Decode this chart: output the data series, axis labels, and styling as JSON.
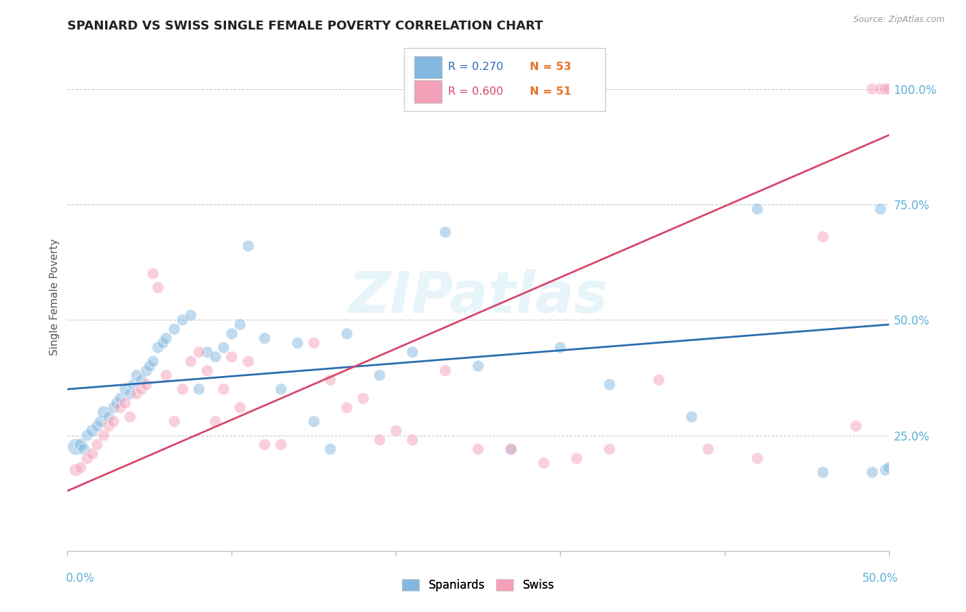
{
  "title": "SPANIARD VS SWISS SINGLE FEMALE POVERTY CORRELATION CHART",
  "source": "Source: ZipAtlas.com",
  "ylabel": "Single Female Poverty",
  "ylim": [
    0.0,
    1.1
  ],
  "xlim": [
    0.0,
    0.5
  ],
  "ytick_vals": [
    0.25,
    0.5,
    0.75,
    1.0
  ],
  "ytick_labels": [
    "25.0%",
    "50.0%",
    "75.0%",
    "100.0%"
  ],
  "watermark": "ZIPatlas",
  "blue_color": "#82b8e0",
  "pink_color": "#f4a0b8",
  "blue_line_color": "#2b6cb0",
  "pink_line_color": "#d6456a",
  "tick_color": "#5bb0d8",
  "legend_r_blue": "R = 0.270",
  "legend_n_blue": "N = 53",
  "legend_r_pink": "R = 0.600",
  "legend_n_pink": "N = 51",
  "spaniards_x": [
    0.005,
    0.008,
    0.01,
    0.012,
    0.015,
    0.018,
    0.02,
    0.022,
    0.025,
    0.028,
    0.03,
    0.032,
    0.035,
    0.038,
    0.04,
    0.042,
    0.045,
    0.048,
    0.05,
    0.052,
    0.055,
    0.058,
    0.06,
    0.065,
    0.07,
    0.075,
    0.08,
    0.085,
    0.09,
    0.095,
    0.1,
    0.105,
    0.11,
    0.12,
    0.13,
    0.14,
    0.15,
    0.16,
    0.17,
    0.19,
    0.21,
    0.23,
    0.25,
    0.27,
    0.3,
    0.33,
    0.38,
    0.42,
    0.46,
    0.49,
    0.495,
    0.498,
    0.5
  ],
  "spaniards_y": [
    0.225,
    0.23,
    0.22,
    0.25,
    0.26,
    0.27,
    0.28,
    0.3,
    0.29,
    0.31,
    0.32,
    0.33,
    0.35,
    0.34,
    0.36,
    0.38,
    0.37,
    0.39,
    0.4,
    0.41,
    0.44,
    0.45,
    0.46,
    0.48,
    0.5,
    0.51,
    0.35,
    0.43,
    0.42,
    0.44,
    0.47,
    0.49,
    0.66,
    0.46,
    0.35,
    0.45,
    0.28,
    0.22,
    0.47,
    0.38,
    0.43,
    0.69,
    0.4,
    0.22,
    0.44,
    0.36,
    0.29,
    0.74,
    0.17,
    0.17,
    0.74,
    0.175,
    0.18
  ],
  "spaniards_size": [
    300,
    180,
    150,
    150,
    180,
    150,
    150,
    180,
    150,
    150,
    150,
    150,
    150,
    150,
    150,
    150,
    150,
    150,
    150,
    150,
    150,
    150,
    150,
    150,
    150,
    150,
    150,
    150,
    150,
    150,
    150,
    150,
    150,
    150,
    150,
    150,
    150,
    150,
    150,
    150,
    150,
    150,
    150,
    150,
    150,
    150,
    150,
    150,
    150,
    150,
    150,
    150,
    150
  ],
  "swiss_x": [
    0.005,
    0.008,
    0.012,
    0.015,
    0.018,
    0.022,
    0.025,
    0.028,
    0.032,
    0.035,
    0.038,
    0.042,
    0.045,
    0.048,
    0.052,
    0.055,
    0.06,
    0.065,
    0.07,
    0.075,
    0.08,
    0.085,
    0.09,
    0.095,
    0.1,
    0.105,
    0.11,
    0.12,
    0.13,
    0.15,
    0.16,
    0.17,
    0.18,
    0.19,
    0.2,
    0.21,
    0.23,
    0.25,
    0.27,
    0.29,
    0.31,
    0.33,
    0.36,
    0.39,
    0.42,
    0.46,
    0.48,
    0.49,
    0.495,
    0.498,
    0.5
  ],
  "swiss_y": [
    0.175,
    0.18,
    0.2,
    0.21,
    0.23,
    0.25,
    0.27,
    0.28,
    0.31,
    0.32,
    0.29,
    0.34,
    0.35,
    0.36,
    0.6,
    0.57,
    0.38,
    0.28,
    0.35,
    0.41,
    0.43,
    0.39,
    0.28,
    0.35,
    0.42,
    0.31,
    0.41,
    0.23,
    0.23,
    0.45,
    0.37,
    0.31,
    0.33,
    0.24,
    0.26,
    0.24,
    0.39,
    0.22,
    0.22,
    0.19,
    0.2,
    0.22,
    0.37,
    0.22,
    0.2,
    0.68,
    0.27,
    1.0,
    1.0,
    1.0,
    1.0
  ],
  "swiss_size": [
    180,
    150,
    150,
    150,
    150,
    150,
    150,
    150,
    150,
    150,
    150,
    150,
    150,
    150,
    150,
    150,
    150,
    150,
    150,
    150,
    150,
    150,
    150,
    150,
    150,
    150,
    150,
    150,
    150,
    150,
    150,
    150,
    150,
    150,
    150,
    150,
    150,
    150,
    150,
    150,
    150,
    150,
    150,
    150,
    150,
    150,
    150,
    150,
    150,
    150,
    150
  ],
  "blue_trend": [
    0.35,
    0.49
  ],
  "pink_trend": [
    0.13,
    0.9
  ]
}
